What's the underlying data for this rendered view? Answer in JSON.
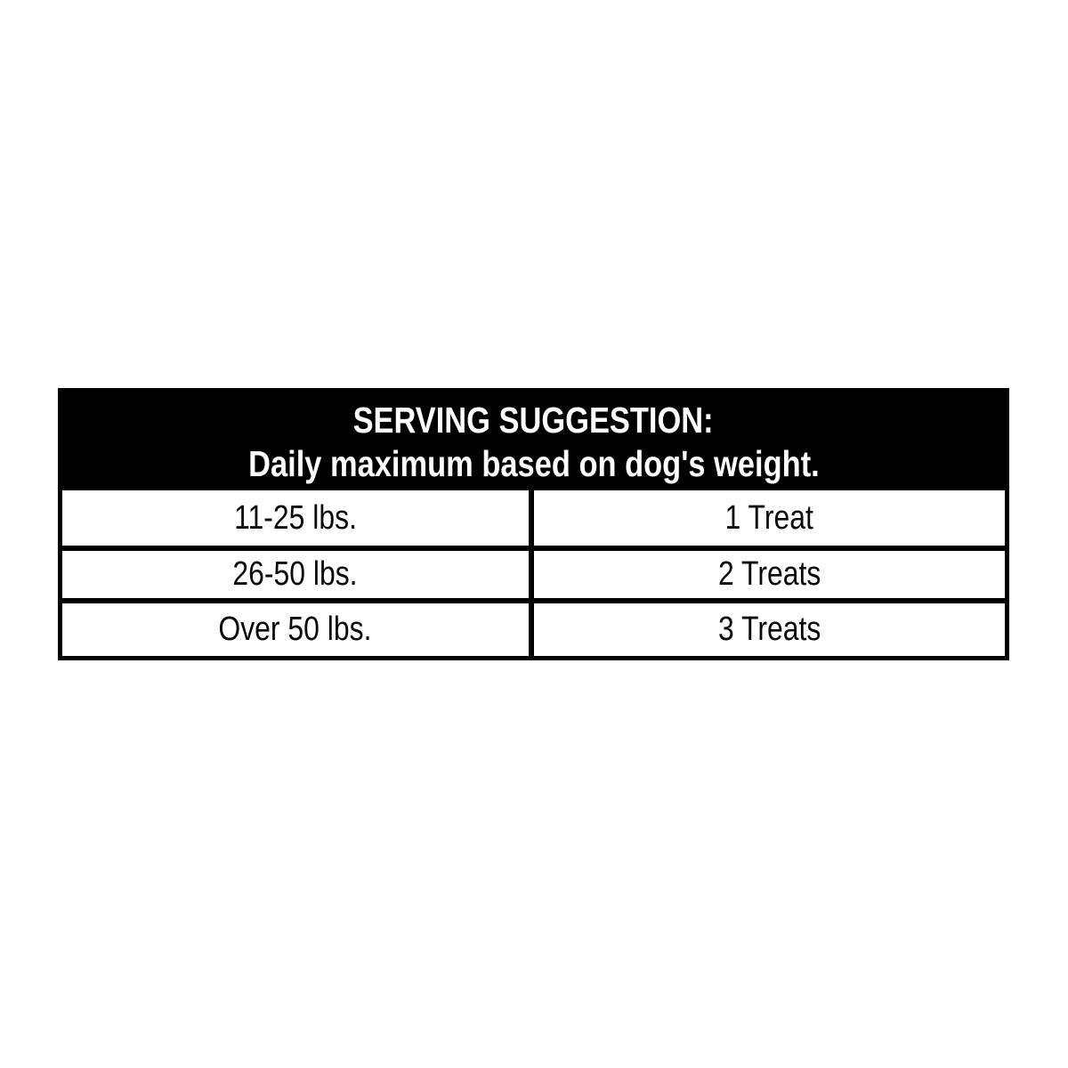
{
  "page": {
    "background_color": "#ffffff"
  },
  "table": {
    "header": {
      "line1": "SERVING SUGGESTION:",
      "line2": "Daily maximum based on dog's weight."
    },
    "columns": [
      "weight",
      "treats"
    ],
    "rows": [
      {
        "weight": "11-25 lbs.",
        "treats": "1 Treat"
      },
      {
        "weight": "26-50 lbs.",
        "treats": "2 Treats"
      },
      {
        "weight": "Over 50 lbs.",
        "treats": "3 Treats"
      }
    ],
    "colors": {
      "header_bg": "#000000",
      "header_text": "#ffffff",
      "border": "#000000",
      "row_bg": "#ffffff",
      "row_text": "#0a0a0a"
    }
  }
}
